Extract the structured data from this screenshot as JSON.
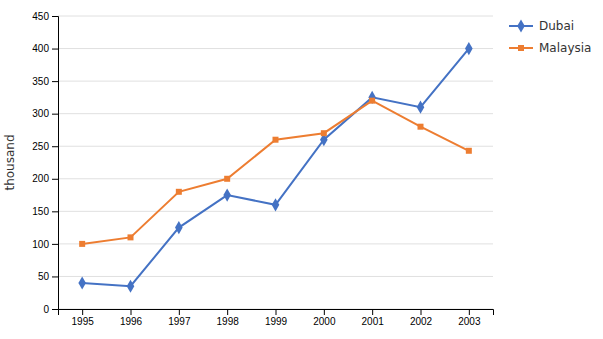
{
  "chart_data": {
    "type": "line",
    "categories": [
      "1995",
      "1996",
      "1997",
      "1998",
      "1999",
      "2000",
      "2001",
      "2002",
      "2003"
    ],
    "series": [
      {
        "name": "Dubai",
        "color": "#4472C4",
        "marker": "diamond",
        "values": [
          40,
          35,
          125,
          175,
          160,
          260,
          325,
          310,
          400
        ]
      },
      {
        "name": "Malaysia",
        "color": "#ED7D31",
        "marker": "square",
        "values": [
          100,
          110,
          180,
          200,
          260,
          270,
          320,
          280,
          243
        ]
      }
    ],
    "ylabel": "thousand",
    "ylim": [
      0,
      450
    ],
    "yticks": [
      0,
      50,
      100,
      150,
      200,
      250,
      300,
      350,
      400,
      450
    ],
    "grid": true,
    "legend": "right"
  }
}
